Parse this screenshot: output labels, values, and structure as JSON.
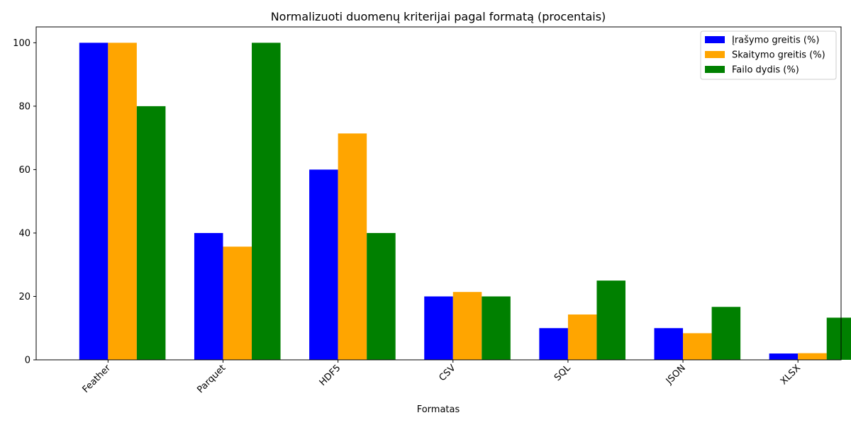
{
  "chart_data": {
    "type": "bar",
    "title": "Normalizuoti duomenų kriterijai pagal formatą (procentais)",
    "xlabel": "Formatas",
    "ylabel": "",
    "categories": [
      "Feather",
      "Parquet",
      "HDF5",
      "CSV",
      "SQL",
      "JSON",
      "XLSX"
    ],
    "series": [
      {
        "name": "Įrašymo greitis (%)",
        "color": "#0000ff",
        "values": [
          100,
          40,
          60,
          20,
          10,
          10,
          2
        ]
      },
      {
        "name": "Skaitymo greitis (%)",
        "color": "#ffa500",
        "values": [
          100,
          35.7,
          71.4,
          21.4,
          14.3,
          8.4,
          2.1
        ]
      },
      {
        "name": "Failo dydis (%)",
        "color": "#008000",
        "values": [
          80,
          100,
          40,
          20,
          25,
          16.7,
          13.3
        ]
      }
    ],
    "ylim": [
      0,
      105
    ],
    "yticks": [
      0,
      20,
      40,
      60,
      80,
      100
    ],
    "grid": false,
    "legend_position": "top-right"
  }
}
